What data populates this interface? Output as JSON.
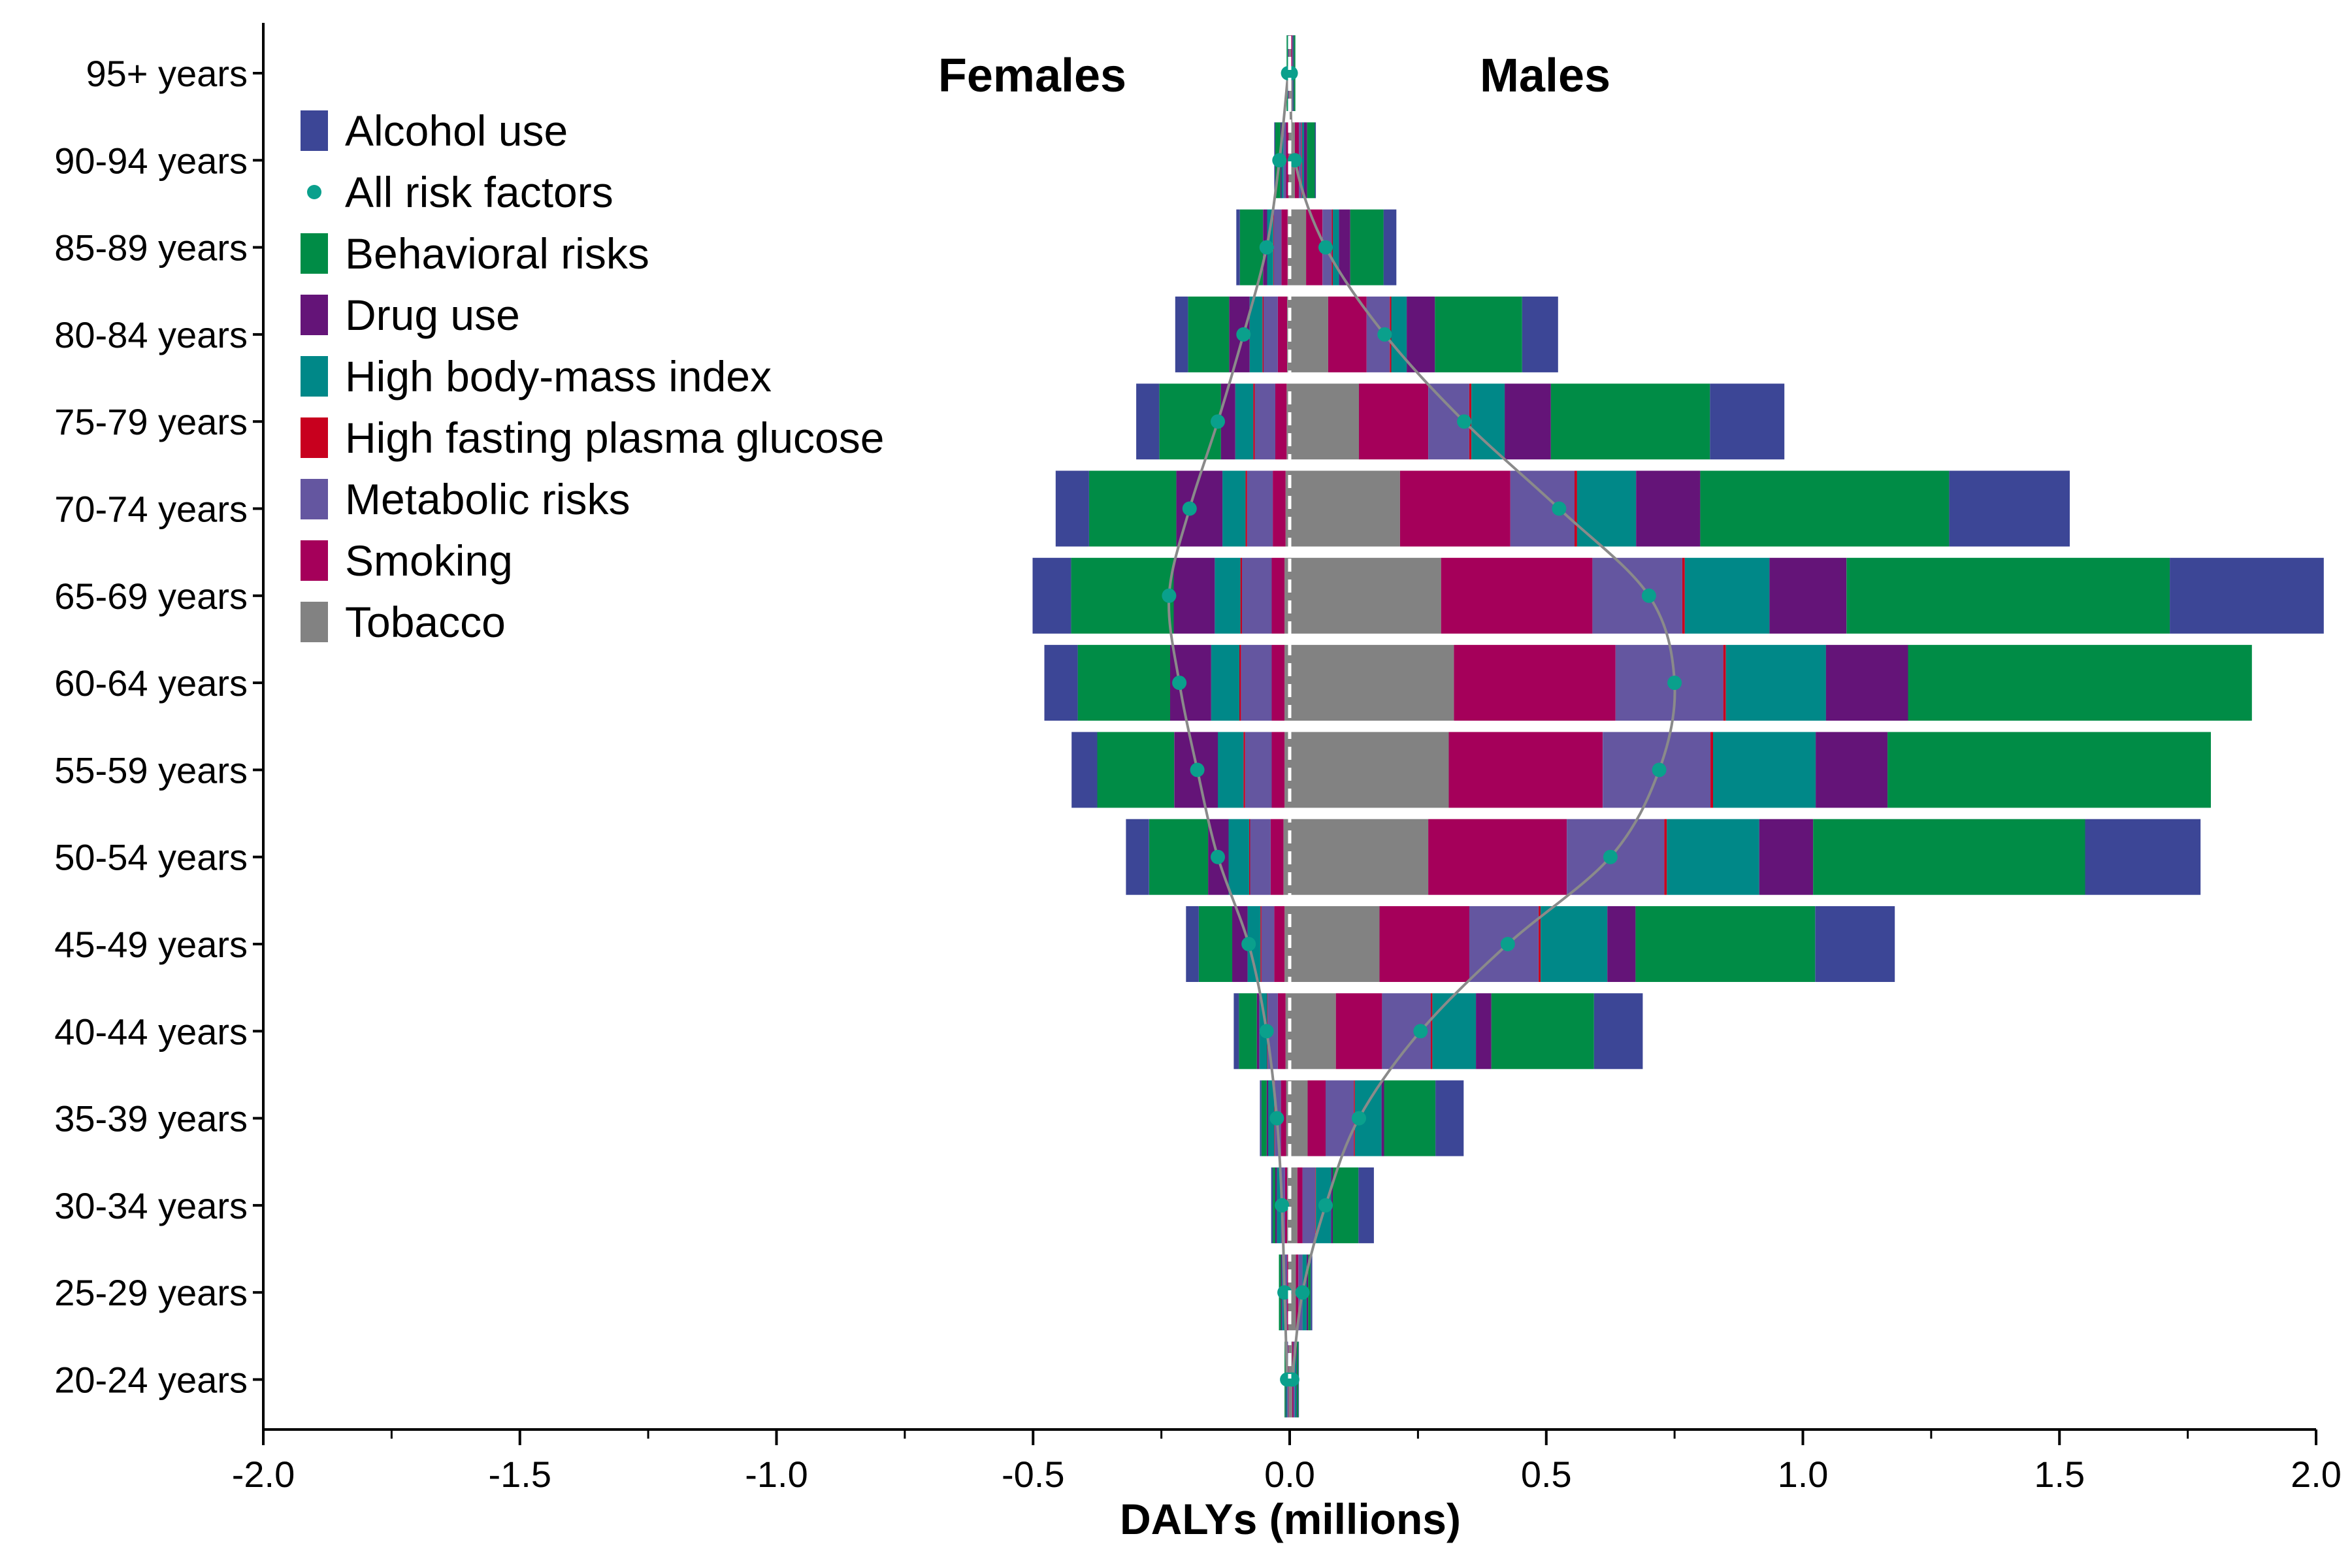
{
  "chart_data": {
    "type": "bar",
    "orientation": "horizontal",
    "stacked": true,
    "diverging": true,
    "xlabel": "DALYs (millions)",
    "xlim": [
      -2.0,
      2.0
    ],
    "xticks": [
      -2.0,
      -1.5,
      -1.0,
      -0.5,
      0.0,
      0.5,
      1.0,
      1.5,
      2.0
    ],
    "xtick_labels": [
      "-2.0",
      "-1.5",
      "-1.0",
      "-0.5",
      "0.0",
      "0.5",
      "1.0",
      "1.5",
      "2.0"
    ],
    "side_labels": {
      "left": "Females",
      "right": "Males"
    },
    "categories": [
      "20-24 years",
      "25-29 years",
      "30-34 years",
      "35-39 years",
      "40-44 years",
      "45-49 years",
      "50-54 years",
      "55-59 years",
      "60-64 years",
      "65-69 years",
      "70-74 years",
      "75-79 years",
      "80-84 years",
      "85-89 years",
      "90-94 years",
      "95+ years"
    ],
    "legend_position": "top-left",
    "grid": false,
    "stack_order": [
      "Tobacco",
      "Smoking",
      "Metabolic risks",
      "High fasting plasma glucose",
      "High body-mass index",
      "Drug use",
      "Behavioral risks",
      "Alcohol use"
    ],
    "series": [
      {
        "name": "Tobacco",
        "color": "#828282",
        "males": [
          0.005,
          0.012,
          0.015,
          0.035,
          0.09,
          0.175,
          0.27,
          0.31,
          0.32,
          0.295,
          0.215,
          0.135,
          0.075,
          0.032,
          0.01,
          0.003
        ],
        "females": [
          0.002,
          0.003,
          0.005,
          0.007,
          0.008,
          0.01,
          0.012,
          0.01,
          0.01,
          0.01,
          0.008,
          0.006,
          0.005,
          0.004,
          0.002,
          0.001
        ]
      },
      {
        "name": "Smoking",
        "color": "#A5005A",
        "males": [
          0.002,
          0.005,
          0.01,
          0.035,
          0.09,
          0.175,
          0.27,
          0.3,
          0.315,
          0.295,
          0.215,
          0.135,
          0.075,
          0.032,
          0.008,
          0.002
        ],
        "females": [
          0.001,
          0.002,
          0.004,
          0.01,
          0.015,
          0.02,
          0.025,
          0.025,
          0.025,
          0.025,
          0.025,
          0.022,
          0.018,
          0.012,
          0.005,
          0.001
        ]
      },
      {
        "name": "Metabolic risks",
        "color": "#6456A0",
        "males": [
          0.003,
          0.008,
          0.025,
          0.055,
          0.095,
          0.135,
          0.19,
          0.21,
          0.21,
          0.175,
          0.125,
          0.08,
          0.045,
          0.018,
          0.005,
          0.001
        ],
        "females": [
          0.002,
          0.005,
          0.008,
          0.012,
          0.02,
          0.025,
          0.04,
          0.052,
          0.06,
          0.058,
          0.05,
          0.04,
          0.028,
          0.015,
          0.005,
          0.001
        ]
      },
      {
        "name": "High fasting plasma glucose",
        "color": "#C8001E",
        "males": [
          0.0,
          0.0,
          0.001,
          0.002,
          0.003,
          0.004,
          0.005,
          0.005,
          0.005,
          0.005,
          0.005,
          0.004,
          0.003,
          0.002,
          0.001,
          0.0
        ],
        "females": [
          0.0,
          0.0,
          0.0,
          0.001,
          0.001,
          0.002,
          0.002,
          0.003,
          0.003,
          0.003,
          0.003,
          0.003,
          0.002,
          0.001,
          0.0,
          0.0
        ]
      },
      {
        "name": "High body-mass index",
        "color": "#008888",
        "males": [
          0.003,
          0.008,
          0.03,
          0.052,
          0.085,
          0.13,
          0.18,
          0.2,
          0.195,
          0.165,
          0.115,
          0.065,
          0.03,
          0.012,
          0.004,
          0.001
        ],
        "females": [
          0.002,
          0.005,
          0.008,
          0.012,
          0.015,
          0.025,
          0.04,
          0.05,
          0.055,
          0.05,
          0.045,
          0.035,
          0.025,
          0.012,
          0.004,
          0.001
        ]
      },
      {
        "name": "Drug use",
        "color": "#641478",
        "males": [
          0.001,
          0.003,
          0.003,
          0.005,
          0.03,
          0.055,
          0.105,
          0.14,
          0.16,
          0.15,
          0.125,
          0.09,
          0.055,
          0.022,
          0.006,
          0.001
        ],
        "females": [
          0.001,
          0.002,
          0.003,
          0.003,
          0.005,
          0.03,
          0.04,
          0.085,
          0.08,
          0.08,
          0.09,
          0.028,
          0.04,
          0.008,
          0.002,
          0.0
        ]
      },
      {
        "name": "Behavioral risks",
        "color": "#008C46",
        "males": [
          0.003,
          0.005,
          0.05,
          0.1,
          0.2,
          0.35,
          0.53,
          0.63,
          0.67,
          0.63,
          0.485,
          0.31,
          0.17,
          0.065,
          0.015,
          0.003
        ],
        "females": [
          0.002,
          0.004,
          0.005,
          0.01,
          0.035,
          0.065,
          0.115,
          0.15,
          0.18,
          0.2,
          0.17,
          0.12,
          0.08,
          0.045,
          0.01,
          0.002
        ]
      },
      {
        "name": "Alcohol use",
        "color": "#3C4696",
        "males": [
          0.001,
          0.003,
          0.03,
          0.055,
          0.095,
          0.155,
          0.225,
          0.0,
          0.0,
          0.3,
          0.235,
          0.145,
          0.07,
          0.025,
          0.002,
          0.0
        ],
        "females": [
          0.0,
          0.0,
          0.003,
          0.003,
          0.01,
          0.025,
          0.045,
          0.05,
          0.065,
          0.075,
          0.065,
          0.045,
          0.025,
          0.007,
          0.002,
          0.0
        ]
      }
    ],
    "all_risk_factors": {
      "name": "All risk factors",
      "color": "#0AA08C",
      "males": [
        0.005,
        0.025,
        0.07,
        0.135,
        0.255,
        0.425,
        0.625,
        0.72,
        0.75,
        0.7,
        0.525,
        0.34,
        0.185,
        0.07,
        0.01,
        0.002
      ],
      "females": [
        -0.005,
        -0.01,
        -0.015,
        -0.025,
        -0.045,
        -0.08,
        -0.14,
        -0.18,
        -0.215,
        -0.235,
        -0.195,
        -0.14,
        -0.09,
        -0.045,
        -0.02,
        -0.003
      ]
    }
  }
}
